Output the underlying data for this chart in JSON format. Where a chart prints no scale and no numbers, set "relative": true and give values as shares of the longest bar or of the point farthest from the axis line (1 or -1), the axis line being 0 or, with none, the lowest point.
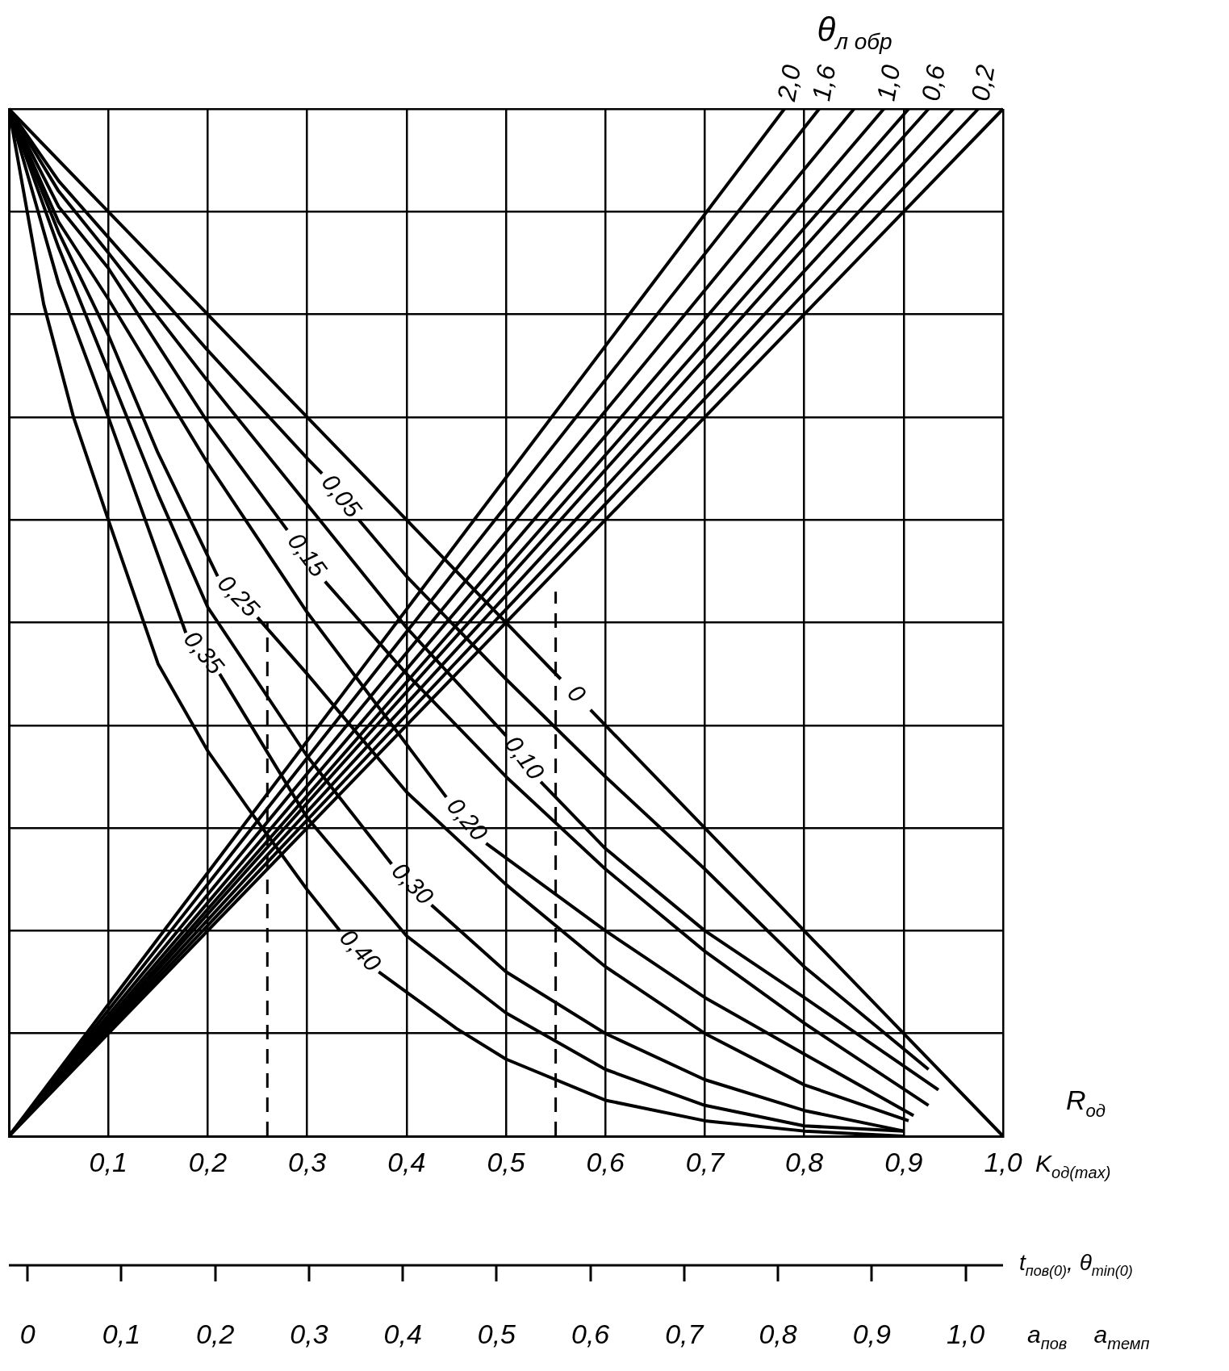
{
  "chart_data": {
    "type": "line",
    "relative": true,
    "grid": true,
    "legend_title": "θ$_{л обр}$",
    "xlabel": "K$_{од(max)}$",
    "x2label": "t$_{пов(0)}$, θ$_{min(0)}$",
    "annotations": [
      "R$_{од}$",
      "a$_{пов}$    a$_{темп}$"
    ],
    "xlim": [
      0,
      1
    ],
    "xticks": [
      {
        "value": 0.1,
        "label": "0,1"
      },
      {
        "value": 0.2,
        "label": "0,2"
      },
      {
        "value": 0.3,
        "label": "0,3"
      },
      {
        "value": 0.4,
        "label": "0,4"
      },
      {
        "value": 0.5,
        "label": "0,5"
      },
      {
        "value": 0.6,
        "label": "0,6"
      },
      {
        "value": 0.7,
        "label": "0,7"
      },
      {
        "value": 0.8,
        "label": "0,8"
      },
      {
        "value": 0.9,
        "label": "0,9"
      },
      {
        "value": 1,
        "label": "1,0"
      }
    ],
    "x2lim": [
      -0.02,
      1.04
    ],
    "x2ticks": [
      0,
      {
        "value": 0.1,
        "label": "0,1"
      },
      {
        "value": 0.2,
        "label": "0,2"
      },
      {
        "value": 0.3,
        "label": "0,3"
      },
      {
        "value": 0.4,
        "label": "0,4"
      },
      {
        "value": 0.5,
        "label": "0,5"
      },
      {
        "value": 0.6,
        "label": "0,6"
      },
      {
        "value": 0.7,
        "label": "0,7"
      },
      {
        "value": 0.8,
        "label": "0,8"
      },
      {
        "value": 0.9,
        "label": "0,9"
      },
      {
        "value": 1,
        "label": "1,0"
      }
    ],
    "series": [
      {
        "name": "0",
        "color": "#000000",
        "x": [
          0,
          0.555,
          0.57,
          0.585,
          1
        ],
        "values": [
          1,
          0.445,
          null,
          0.415,
          0
        ]
      },
      {
        "name": "0,05",
        "color": "#000000",
        "x": [
          0,
          0.05,
          0.1,
          0.2,
          0.3,
          0.315,
          0.333,
          0.352,
          0.4,
          0.5,
          0.6,
          0.7,
          0.8,
          0.925
        ],
        "values": [
          1,
          0.93,
          0.875,
          0.765,
          0.66,
          0.645,
          null,
          0.6,
          0.545,
          0.445,
          0.35,
          0.26,
          0.165,
          0.065
        ]
      },
      {
        "name": "0,10",
        "color": "#000000",
        "x": [
          0,
          0.05,
          0.1,
          0.2,
          0.3,
          0.4,
          0.5,
          0.518,
          0.535,
          0.6,
          0.7,
          0.8,
          0.935
        ],
        "values": [
          1,
          0.92,
          0.86,
          0.735,
          0.615,
          0.495,
          0.39,
          null,
          0.345,
          0.28,
          0.2,
          0.135,
          0.045
        ]
      },
      {
        "name": "0,15",
        "color": "#000000",
        "x": [
          0,
          0.05,
          0.1,
          0.2,
          0.28,
          0.299,
          0.318,
          0.4,
          0.5,
          0.6,
          0.7,
          0.8,
          0.925
        ],
        "values": [
          1,
          0.905,
          0.845,
          0.695,
          0.59,
          null,
          0.54,
          0.45,
          0.35,
          0.26,
          0.18,
          0.11,
          0.03
        ]
      },
      {
        "name": "0,20",
        "color": "#000000",
        "x": [
          0,
          0.05,
          0.1,
          0.2,
          0.3,
          0.44,
          0.46,
          0.48,
          0.6,
          0.7,
          0.8,
          0.91
        ],
        "values": [
          1,
          0.89,
          0.815,
          0.655,
          0.51,
          0.33,
          null,
          0.285,
          0.2,
          0.135,
          0.08,
          0.02
        ]
      },
      {
        "name": "0,25",
        "color": "#000000",
        "x": [
          0,
          0.05,
          0.1,
          0.15,
          0.21,
          0.23,
          0.25,
          0.3,
          0.4,
          0.5,
          0.6,
          0.7,
          0.8,
          0.905
        ],
        "values": [
          1,
          0.88,
          0.78,
          0.665,
          0.545,
          null,
          0.505,
          0.45,
          0.335,
          0.245,
          0.165,
          0.1,
          0.05,
          0.015
        ]
      },
      {
        "name": "0,30",
        "color": "#000000",
        "x": [
          0,
          0.05,
          0.1,
          0.15,
          0.2,
          0.3,
          0.385,
          0.405,
          0.425,
          0.5,
          0.6,
          0.7,
          0.8,
          0.9
        ],
        "values": [
          1,
          0.865,
          0.745,
          0.625,
          0.515,
          0.37,
          0.265,
          null,
          0.225,
          0.16,
          0.1,
          0.055,
          0.025,
          0.005
        ]
      },
      {
        "name": "0,35",
        "color": "#000000",
        "x": [
          0,
          0.05,
          0.1,
          0.178,
          0.195,
          0.212,
          0.3,
          0.4,
          0.5,
          0.6,
          0.7,
          0.8,
          0.9
        ],
        "values": [
          1,
          0.83,
          0.7,
          0.49,
          null,
          0.45,
          0.31,
          0.195,
          0.12,
          0.065,
          0.03,
          0.01,
          0.005
        ]
      },
      {
        "name": "0,40",
        "color": "#000000",
        "x": [
          0,
          0.035,
          0.065,
          0.1,
          0.15,
          0.2,
          0.24,
          0.3,
          0.333,
          0.353,
          0.372,
          0.45,
          0.5,
          0.6,
          0.7,
          0.8,
          0.9
        ],
        "values": [
          1,
          0.81,
          0.7,
          0.6,
          0.46,
          0.375,
          0.32,
          0.24,
          0.2,
          null,
          0.16,
          0.105,
          0.075,
          0.035,
          0.015,
          0.005,
          0
        ]
      },
      {
        "name": "2,0",
        "color": "#000000",
        "x": [
          0,
          0.78
        ],
        "values": [
          0,
          1
        ]
      },
      {
        "name": "1,6",
        "color": "#000000",
        "x": [
          0,
          0.815
        ],
        "values": [
          0,
          1
        ]
      },
      {
        "color": "#000000",
        "x": [
          0,
          0.85
        ],
        "values": [
          0,
          1
        ]
      },
      {
        "name": "1,0",
        "color": "#000000",
        "x": [
          0,
          0.88
        ],
        "values": [
          0,
          1
        ]
      },
      {
        "color": "#000000",
        "x": [
          0,
          0.905
        ],
        "values": [
          0,
          1
        ]
      },
      {
        "name": "0,6",
        "color": "#000000",
        "x": [
          0,
          0.925
        ],
        "values": [
          0,
          1
        ]
      },
      {
        "color": "#000000",
        "x": [
          0,
          0.95
        ],
        "values": [
          0,
          1
        ]
      },
      {
        "name": "0,2",
        "color": "#000000",
        "x": [
          0,
          0.975
        ],
        "values": [
          0,
          1
        ]
      },
      {
        "color": "#000000",
        "x": [
          0,
          1
        ],
        "values": [
          0,
          1
        ]
      },
      {
        "color": "#000000",
        "line_style": "dashed",
        "x": [
          0.26,
          0.26
        ],
        "values": [
          0,
          0.5
        ]
      },
      {
        "color": "#000000",
        "line_style": "dashed",
        "x": [
          0.55,
          0.55
        ],
        "values": [
          0,
          0.53
        ]
      }
    ]
  }
}
